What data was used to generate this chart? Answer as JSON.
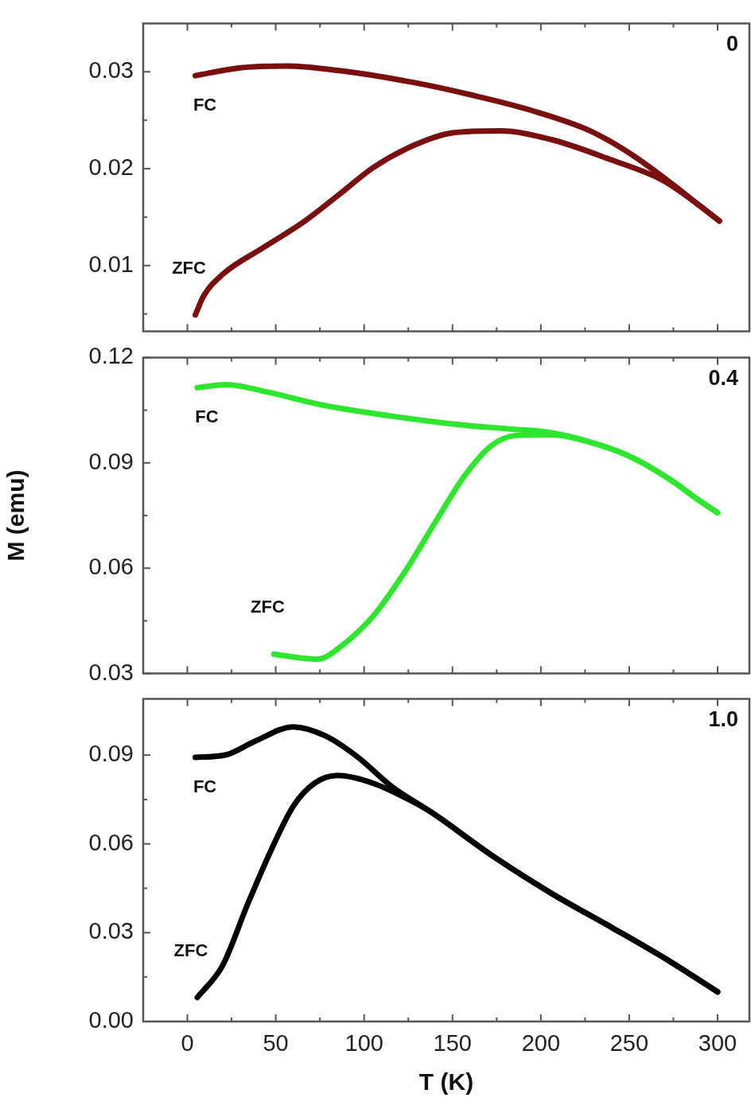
{
  "chart_data": [
    {
      "type": "line",
      "annotations": [
        "0"
      ],
      "xlim": [
        -25,
        318
      ],
      "xticks": [
        0,
        {
          "value": 25,
          "label": null
        },
        50,
        {
          "value": 75,
          "label": null
        },
        100,
        {
          "value": 125,
          "label": null
        },
        150,
        {
          "value": 175,
          "label": null
        },
        200,
        {
          "value": 225,
          "label": null
        },
        250,
        {
          "value": 275,
          "label": null
        },
        300
      ],
      "ylim": [
        0.0032,
        0.035
      ],
      "yticks": [
        {
          "value": 0.005,
          "label": null
        },
        0.01,
        {
          "value": 0.015,
          "label": null
        },
        0.02,
        {
          "value": 0.025,
          "label": null
        },
        0.03
      ],
      "tick_labels": "y",
      "marker": "none",
      "line_style": "solid",
      "series": [
        {
          "name": "FC",
          "color": "#7a0f0f",
          "x": [
            4.5,
            29,
            56,
            87,
            128,
            161,
            195,
            228,
            251,
            273,
            289,
            301
          ],
          "values": [
            0.0296,
            0.0304,
            0.0306,
            0.0301,
            0.0289,
            0.0276,
            0.026,
            0.0239,
            0.0215,
            0.0186,
            0.0163,
            0.0146
          ]
        },
        {
          "name": "ZFC",
          "color": "#7a0f0f",
          "x": [
            4.5,
            9,
            20,
            42.5,
            65,
            87,
            105,
            128,
            150,
            177,
            206,
            240,
            269,
            289,
            301
          ],
          "values": [
            0.0049,
            0.0068,
            0.0091,
            0.0118,
            0.0144,
            0.0175,
            0.0201,
            0.0224,
            0.0237,
            0.0239,
            0.023,
            0.0209,
            0.0188,
            0.0163,
            0.0146
          ]
        }
      ]
    },
    {
      "type": "line",
      "ylabel": "M (emu)",
      "annotations": [
        "0.4"
      ],
      "xlim": [
        -25,
        318
      ],
      "xticks": [
        0,
        {
          "value": 25,
          "label": null
        },
        50,
        {
          "value": 75,
          "label": null
        },
        100,
        {
          "value": 125,
          "label": null
        },
        150,
        {
          "value": 175,
          "label": null
        },
        200,
        {
          "value": 225,
          "label": null
        },
        250,
        {
          "value": 275,
          "label": null
        },
        300
      ],
      "ylim": [
        0.03,
        0.12
      ],
      "yticks": [
        0.03,
        {
          "value": 0.045,
          "label": null
        },
        0.06,
        {
          "value": 0.075,
          "label": null
        },
        0.09,
        {
          "value": 0.105,
          "label": null
        },
        0.12
      ],
      "tick_labels": "y",
      "marker": "none",
      "line_style": "solid",
      "series": [
        {
          "name": "FC",
          "color": "#2ee62e",
          "x": [
            5.6,
            22,
            45,
            76,
            116,
            157,
            184,
            206,
            228,
            251,
            273,
            289,
            300
          ],
          "values": [
            0.1114,
            0.1123,
            0.1102,
            0.1065,
            0.1033,
            0.1007,
            0.0996,
            0.0986,
            0.0959,
            0.0917,
            0.0853,
            0.0795,
            0.0758
          ]
        },
        {
          "name": "ZFC",
          "color": "#2ee62e",
          "x": [
            49,
            65,
            74,
            87,
            105,
            123,
            141,
            157,
            172,
            186,
            206,
            228,
            251,
            273,
            289,
            300
          ],
          "values": [
            0.0355,
            0.0344,
            0.0341,
            0.0378,
            0.0463,
            0.0589,
            0.0737,
            0.0864,
            0.0949,
            0.0978,
            0.098,
            0.0959,
            0.0917,
            0.0853,
            0.0795,
            0.0758
          ]
        }
      ]
    },
    {
      "type": "line",
      "xlabel": "T (K)",
      "annotations": [
        "1.0"
      ],
      "xlim": [
        -25,
        318
      ],
      "xticks": [
        0,
        {
          "value": 25,
          "label": null
        },
        50,
        {
          "value": 75,
          "label": null
        },
        100,
        {
          "value": 125,
          "label": null
        },
        150,
        {
          "value": 175,
          "label": null
        },
        200,
        {
          "value": 225,
          "label": null
        },
        250,
        {
          "value": 275,
          "label": null
        },
        300
      ],
      "ylim": [
        0,
        0.109
      ],
      "yticks": [
        {
          "value": 0,
          "label": "0.00"
        },
        {
          "value": 0.015,
          "label": null
        },
        0.03,
        {
          "value": 0.045,
          "label": null
        },
        0.06,
        {
          "value": 0.075,
          "label": null
        },
        0.09
      ],
      "marker": "none",
      "line_style": "solid",
      "series": [
        {
          "name": "FC",
          "color": "#000000",
          "x": [
            4.5,
            22,
            38,
            60,
            78,
            96,
            116,
            139,
            172,
            206,
            240,
            273,
            300
          ],
          "values": [
            0.0892,
            0.0901,
            0.0946,
            0.0995,
            0.0965,
            0.0895,
            0.0792,
            0.0703,
            0.0562,
            0.0433,
            0.0318,
            0.0203,
            0.01
          ]
        },
        {
          "name": "ZFC",
          "color": "#000000",
          "x": [
            5.6,
            20,
            34,
            47,
            60,
            72,
            85,
            105,
            128,
            139,
            172,
            206,
            240,
            273,
            300
          ],
          "values": [
            0.0081,
            0.019,
            0.0395,
            0.0574,
            0.0728,
            0.0805,
            0.0831,
            0.0805,
            0.0741,
            0.0703,
            0.0562,
            0.0433,
            0.0318,
            0.0203,
            0.01
          ]
        }
      ]
    }
  ]
}
